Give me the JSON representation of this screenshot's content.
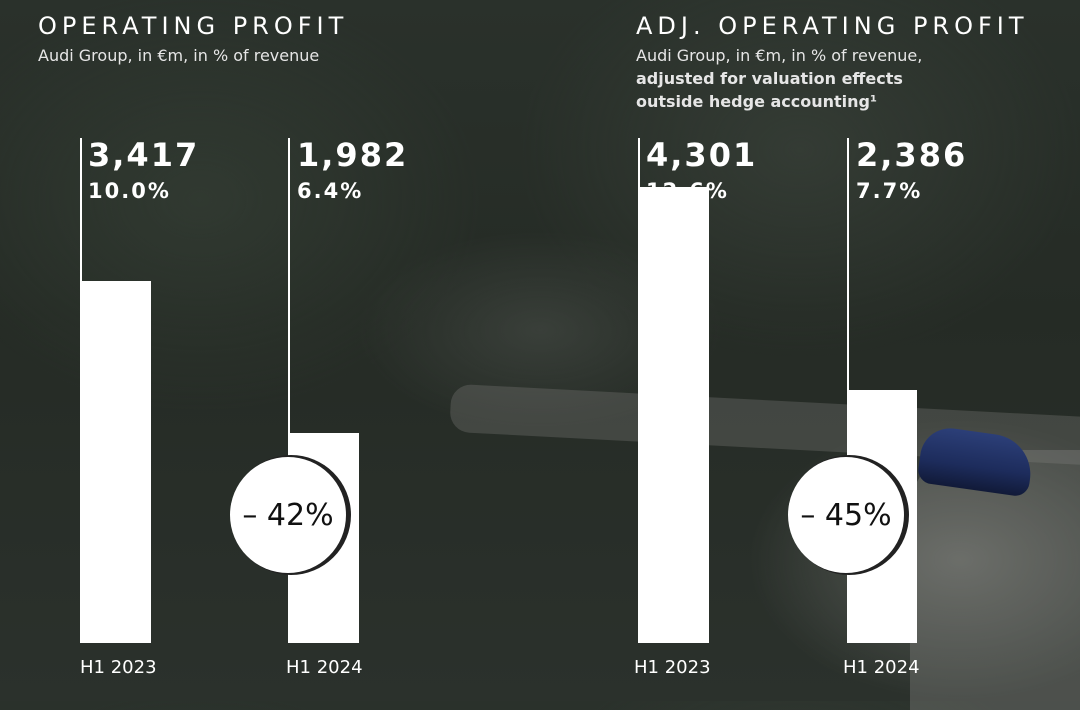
{
  "left_chart": {
    "title": "OPERATING PROFIT",
    "subtitle_lines": [
      "Audi Group, in €m, in % of revenue"
    ]
  },
  "right_chart": {
    "title": "ADJ. OPERATING PROFIT",
    "subtitle_lines": [
      "Audi Group, in €m, in % of revenue,",
      "adjusted for valuation effects",
      "outside hedge accounting¹"
    ]
  },
  "chart_data": [
    {
      "type": "bar",
      "title": "OPERATING PROFIT",
      "subtitle": "Audi Group, in €m, in % of revenue",
      "categories": [
        "H1 2023",
        "H1 2024"
      ],
      "values": [
        3417,
        1982
      ],
      "value_labels": [
        "3,417",
        "1,982"
      ],
      "percent_labels": [
        "10.0%",
        "6.4%"
      ],
      "change_label": "– 42%",
      "colors": {
        "bar": "#ffffff"
      }
    },
    {
      "type": "bar",
      "title": "ADJ. OPERATING PROFIT",
      "subtitle": "Audi Group, in €m, in % of revenue, adjusted for valuation effects outside hedge accounting¹",
      "categories": [
        "H1 2023",
        "H1 2024"
      ],
      "values": [
        4301,
        2386
      ],
      "value_labels": [
        "4,301",
        "2,386"
      ],
      "percent_labels": [
        "12.6%",
        "7.7%"
      ],
      "change_label": "– 45%",
      "colors": {
        "bar": "#ffffff"
      }
    }
  ]
}
